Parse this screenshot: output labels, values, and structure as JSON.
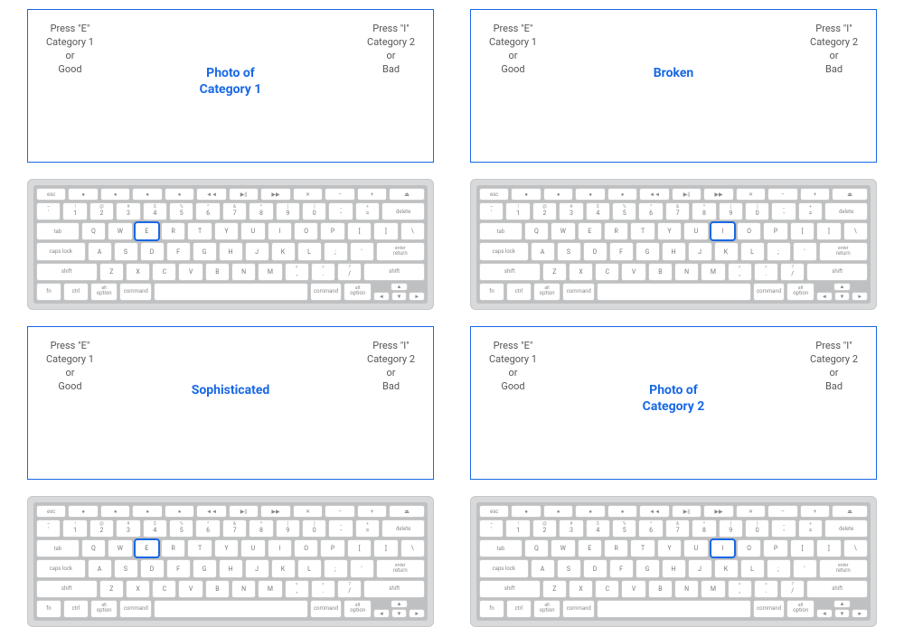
{
  "colors": {
    "panel_border": "#1868e5",
    "stimulus_text": "#1868e5",
    "highlight": "#1868e5",
    "instr_text": "#555555",
    "keyboard_frame": "#d8d9da",
    "keyboard_bed": "#bfc0c1",
    "keycap": "#ffffff",
    "keycap_border": "#c9cacb"
  },
  "instructions": {
    "left": {
      "line1": "Press \"E\"",
      "line2": "Category 1",
      "line3": "or",
      "line4": "Good"
    },
    "right": {
      "line1": "Press \"I\"",
      "line2": "Category 2",
      "line3": "or",
      "line4": "Bad"
    }
  },
  "panels": [
    {
      "stimulus_lines": [
        "Photo of",
        "Category 1"
      ],
      "highlight_key": "E"
    },
    {
      "stimulus_lines": [
        "Broken"
      ],
      "highlight_key": "I"
    },
    {
      "stimulus_lines": [
        "Sophisticated"
      ],
      "highlight_key": "E"
    },
    {
      "stimulus_lines": [
        "Photo of",
        "Category 2"
      ],
      "highlight_key": "I"
    }
  ],
  "keyboard_layout": {
    "row_fn": [
      "esc",
      "●",
      "●",
      "●",
      "●",
      "◄◄",
      "▶||",
      "▶▶",
      "✕",
      "–",
      "+",
      "⏏"
    ],
    "row_num_top": [
      "~",
      "!",
      "@",
      "#",
      "$",
      "%",
      "^",
      "&",
      "*",
      "(",
      ")",
      "_",
      "+",
      ""
    ],
    "row_num": [
      "`",
      "1",
      "2",
      "3",
      "4",
      "5",
      "6",
      "7",
      "8",
      "9",
      "0",
      "-",
      "=",
      "delete"
    ],
    "row_q": [
      "tab",
      "Q",
      "W",
      "E",
      "R",
      "T",
      "Y",
      "U",
      "I",
      "O",
      "P",
      "[",
      "]",
      "\\"
    ],
    "row_a": [
      "caps lock",
      "A",
      "S",
      "D",
      "F",
      "G",
      "H",
      "J",
      "K",
      "L",
      ";",
      "'",
      "return"
    ],
    "row_z_top": [
      "",
      "",
      "",
      "",
      "",
      "",
      "",
      "<",
      ">",
      "?",
      ""
    ],
    "row_z": [
      "shift",
      "Z",
      "X",
      "C",
      "V",
      "B",
      "N",
      "M",
      ",",
      ".",
      "/",
      "shift"
    ],
    "row_mod": [
      "fn",
      "ctrl",
      "alt option",
      "command",
      "",
      "command",
      "alt option"
    ],
    "mod_widths": {
      "delete": 1.8,
      "tab": 1.8,
      "caps lock": 2.1,
      "return": 2.1,
      "shift_l": 2.6,
      "shift_r": 2.6,
      "space": 6.5,
      "fn": 1,
      "ctrl": 1,
      "option": 1.1,
      "command": 1.3,
      "enter": 2.1
    }
  }
}
